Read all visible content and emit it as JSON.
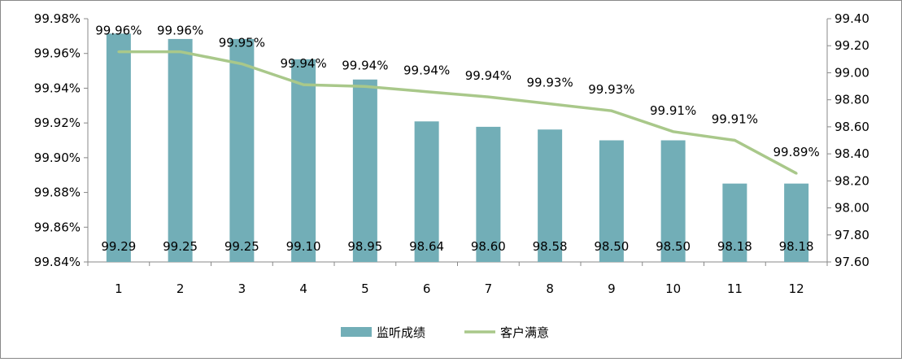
{
  "chart_data": {
    "type": "bar+line",
    "categories": [
      "1",
      "2",
      "3",
      "4",
      "5",
      "6",
      "7",
      "8",
      "9",
      "10",
      "11",
      "12"
    ],
    "series": [
      {
        "name": "监听成绩",
        "type": "bar",
        "axis": "right",
        "color": "#72aeb7",
        "values": [
          99.29,
          99.25,
          99.25,
          99.1,
          98.95,
          98.64,
          98.6,
          98.58,
          98.5,
          98.5,
          98.18,
          98.18
        ],
        "labels": [
          "99.29",
          "99.25",
          "99.25",
          "99.10",
          "98.95",
          "98.64",
          "98.60",
          "98.58",
          "98.50",
          "98.50",
          "98.18",
          "98.18"
        ]
      },
      {
        "name": "客户满意",
        "type": "line",
        "axis": "left",
        "color": "#a9c88a",
        "values": [
          99.961,
          99.961,
          99.954,
          99.942,
          99.941,
          99.938,
          99.935,
          99.931,
          99.927,
          99.915,
          99.91,
          99.891
        ],
        "labels": [
          "99.96%",
          "99.96%",
          "99.95%",
          "99.94%",
          "99.94%",
          "99.94%",
          "99.94%",
          "99.93%",
          "99.93%",
          "99.91%",
          "99.91%",
          "99.89%"
        ]
      }
    ],
    "left_axis": {
      "ylim": [
        99.84,
        99.98
      ],
      "ticks": [
        "99.84%",
        "99.86%",
        "99.88%",
        "99.90%",
        "99.92%",
        "99.94%",
        "99.96%",
        "99.98%"
      ]
    },
    "right_axis": {
      "ylim": [
        97.6,
        99.4
      ],
      "ticks": [
        "97.60",
        "97.80",
        "98.00",
        "98.20",
        "98.40",
        "98.60",
        "98.80",
        "99.00",
        "99.20",
        "99.40"
      ]
    },
    "grid": false,
    "legend": "bottom"
  }
}
